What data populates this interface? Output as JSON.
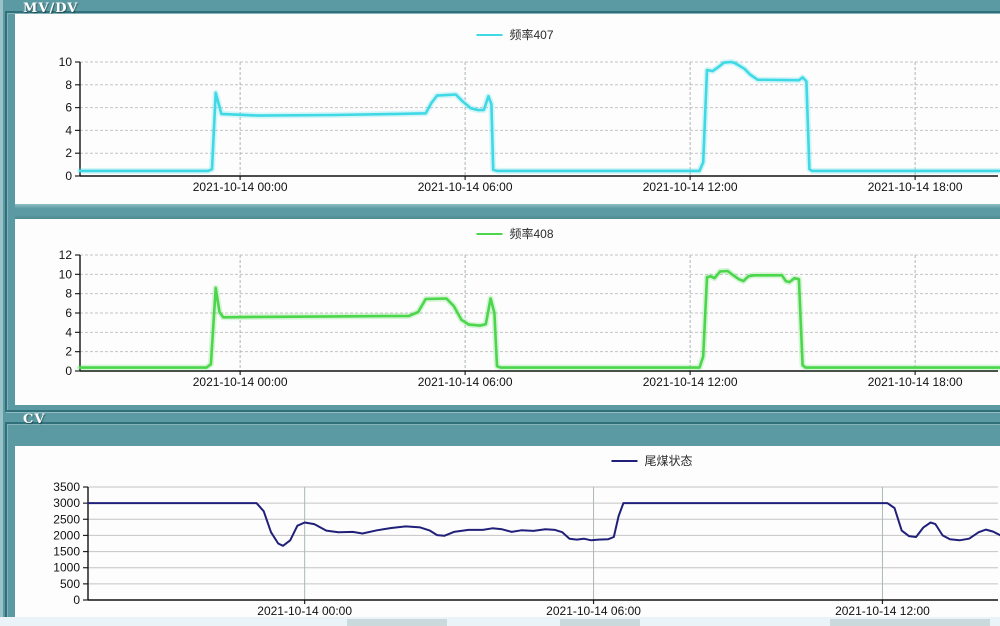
{
  "groups": {
    "mvdv_label": "MV/DV",
    "cv_label": "CV"
  },
  "chart_data": [
    {
      "type": "line",
      "name": "freq-407",
      "legend": "频率407",
      "color": "#3fd9e6",
      "ylim": [
        0,
        10
      ],
      "yticks": [
        0,
        2,
        4,
        6,
        8,
        10
      ],
      "xlim": [
        -4.27,
        20.21
      ],
      "x_unit": "hours relative to 2021-10-14 00:00",
      "xticks": [
        {
          "h": 0,
          "label": "2021-10-14 00:00"
        },
        {
          "h": 6,
          "label": "2021-10-14 06:00"
        },
        {
          "h": 12,
          "label": "2021-10-14 12:00"
        },
        {
          "h": 18,
          "label": "2021-10-14 18:00"
        }
      ],
      "points": [
        [
          -4.27,
          0.45
        ],
        [
          -0.85,
          0.45
        ],
        [
          -0.75,
          0.6
        ],
        [
          -0.65,
          7.3
        ],
        [
          -0.5,
          5.45
        ],
        [
          0.5,
          5.3
        ],
        [
          2.5,
          5.35
        ],
        [
          4.2,
          5.45
        ],
        [
          4.95,
          5.5
        ],
        [
          5.1,
          6.4
        ],
        [
          5.25,
          7.05
        ],
        [
          5.75,
          7.15
        ],
        [
          5.95,
          6.5
        ],
        [
          6.15,
          5.95
        ],
        [
          6.35,
          5.78
        ],
        [
          6.5,
          5.8
        ],
        [
          6.62,
          7.0
        ],
        [
          6.7,
          6.3
        ],
        [
          6.75,
          0.55
        ],
        [
          6.85,
          0.45
        ],
        [
          12.25,
          0.45
        ],
        [
          12.35,
          1.2
        ],
        [
          12.45,
          9.3
        ],
        [
          12.6,
          9.2
        ],
        [
          12.75,
          9.55
        ],
        [
          12.9,
          9.95
        ],
        [
          13.1,
          10.0
        ],
        [
          13.2,
          9.9
        ],
        [
          13.45,
          9.4
        ],
        [
          13.6,
          8.9
        ],
        [
          13.8,
          8.45
        ],
        [
          14.9,
          8.4
        ],
        [
          15.0,
          8.65
        ],
        [
          15.1,
          8.3
        ],
        [
          15.18,
          0.6
        ],
        [
          15.25,
          0.45
        ],
        [
          20.3,
          0.45
        ]
      ]
    },
    {
      "type": "line",
      "name": "freq-408",
      "legend": "频率408",
      "color": "#4cd64c",
      "ylim": [
        0,
        12
      ],
      "yticks": [
        0,
        2,
        4,
        6,
        8,
        10,
        12
      ],
      "xlim": [
        -4.27,
        20.21
      ],
      "x_unit": "hours relative to 2021-10-14 00:00",
      "xticks": [
        {
          "h": 0,
          "label": "2021-10-14 00:00"
        },
        {
          "h": 6,
          "label": "2021-10-14 06:00"
        },
        {
          "h": 12,
          "label": "2021-10-14 12:00"
        },
        {
          "h": 18,
          "label": "2021-10-14 18:00"
        }
      ],
      "points": [
        [
          -4.27,
          0.35
        ],
        [
          -0.9,
          0.35
        ],
        [
          -0.78,
          0.7
        ],
        [
          -0.65,
          8.6
        ],
        [
          -0.55,
          6.1
        ],
        [
          -0.45,
          5.55
        ],
        [
          0.5,
          5.6
        ],
        [
          2.5,
          5.65
        ],
        [
          4.5,
          5.7
        ],
        [
          4.75,
          6.1
        ],
        [
          4.95,
          7.45
        ],
        [
          5.5,
          7.5
        ],
        [
          5.7,
          6.7
        ],
        [
          5.9,
          5.3
        ],
        [
          6.1,
          4.8
        ],
        [
          6.4,
          4.7
        ],
        [
          6.55,
          4.85
        ],
        [
          6.68,
          7.5
        ],
        [
          6.78,
          6.0
        ],
        [
          6.85,
          0.5
        ],
        [
          6.95,
          0.35
        ],
        [
          12.25,
          0.35
        ],
        [
          12.35,
          1.5
        ],
        [
          12.45,
          9.7
        ],
        [
          12.55,
          9.8
        ],
        [
          12.65,
          9.6
        ],
        [
          12.8,
          10.3
        ],
        [
          13.0,
          10.35
        ],
        [
          13.15,
          9.9
        ],
        [
          13.3,
          9.5
        ],
        [
          13.42,
          9.3
        ],
        [
          13.55,
          9.8
        ],
        [
          13.7,
          9.9
        ],
        [
          14.45,
          9.9
        ],
        [
          14.55,
          9.3
        ],
        [
          14.65,
          9.2
        ],
        [
          14.78,
          9.6
        ],
        [
          14.9,
          9.5
        ],
        [
          15.0,
          0.6
        ],
        [
          15.08,
          0.35
        ],
        [
          20.3,
          0.35
        ]
      ]
    },
    {
      "type": "line",
      "name": "tail-coal-status",
      "legend": "尾煤状态",
      "color": "#20207a",
      "ylim": [
        0,
        3500
      ],
      "yticks": [
        0,
        500,
        1000,
        1500,
        2000,
        2500,
        3000,
        3500
      ],
      "xlim": [
        -4.5,
        14.4
      ],
      "x_unit": "hours relative to 2021-10-14 00:00",
      "xticks": [
        {
          "h": 0,
          "label": "2021-10-14 00:00"
        },
        {
          "h": 6,
          "label": "2021-10-14 06:00"
        },
        {
          "h": 12,
          "label": "2021-10-14 12:00"
        }
      ],
      "points": [
        [
          -4.5,
          3000
        ],
        [
          -1.0,
          3000
        ],
        [
          -0.85,
          2750
        ],
        [
          -0.7,
          2100
        ],
        [
          -0.55,
          1750
        ],
        [
          -0.45,
          1680
        ],
        [
          -0.3,
          1850
        ],
        [
          -0.15,
          2300
        ],
        [
          0.0,
          2400
        ],
        [
          0.2,
          2350
        ],
        [
          0.45,
          2150
        ],
        [
          0.7,
          2100
        ],
        [
          1.0,
          2110
        ],
        [
          1.2,
          2060
        ],
        [
          1.5,
          2160
        ],
        [
          1.8,
          2230
        ],
        [
          2.1,
          2280
        ],
        [
          2.4,
          2250
        ],
        [
          2.6,
          2150
        ],
        [
          2.75,
          2010
        ],
        [
          2.9,
          1990
        ],
        [
          3.1,
          2110
        ],
        [
          3.4,
          2170
        ],
        [
          3.7,
          2170
        ],
        [
          3.9,
          2220
        ],
        [
          4.1,
          2190
        ],
        [
          4.3,
          2110
        ],
        [
          4.5,
          2160
        ],
        [
          4.75,
          2140
        ],
        [
          5.0,
          2190
        ],
        [
          5.2,
          2170
        ],
        [
          5.35,
          2100
        ],
        [
          5.5,
          1900
        ],
        [
          5.65,
          1870
        ],
        [
          5.8,
          1900
        ],
        [
          5.95,
          1850
        ],
        [
          6.1,
          1870
        ],
        [
          6.3,
          1880
        ],
        [
          6.42,
          1950
        ],
        [
          6.52,
          2600
        ],
        [
          6.62,
          3000
        ],
        [
          12.1,
          3000
        ],
        [
          12.25,
          2850
        ],
        [
          12.4,
          2150
        ],
        [
          12.55,
          1980
        ],
        [
          12.7,
          1950
        ],
        [
          12.85,
          2250
        ],
        [
          13.0,
          2400
        ],
        [
          13.1,
          2350
        ],
        [
          13.25,
          2000
        ],
        [
          13.4,
          1880
        ],
        [
          13.6,
          1850
        ],
        [
          13.8,
          1900
        ],
        [
          14.0,
          2100
        ],
        [
          14.15,
          2180
        ],
        [
          14.3,
          2120
        ],
        [
          14.45,
          2000
        ]
      ]
    }
  ],
  "colors": {
    "background_teal": "#5b9aa2",
    "panel_white": "#fdfdfd",
    "groupbox_border": "#30707a"
  }
}
